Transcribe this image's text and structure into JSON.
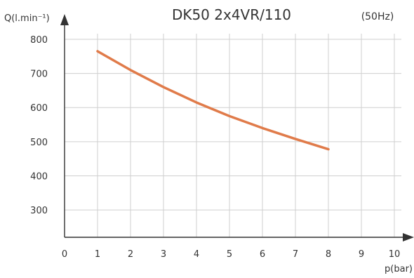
{
  "chart_data": {
    "type": "line",
    "title": "DK50 2x4VR/110",
    "subtitle": "(50Hz)",
    "xlabel": "p(bar)",
    "ylabel": "Q(l.min⁻¹)",
    "xlim": [
      0,
      10
    ],
    "ylim": [
      220,
      800
    ],
    "x_ticks": [
      "0",
      "1",
      "2",
      "3",
      "4",
      "5",
      "6",
      "7",
      "8",
      "9",
      "10"
    ],
    "y_ticks": [
      "300",
      "400",
      "500",
      "600",
      "700",
      "800"
    ],
    "grid": true,
    "series": [
      {
        "x": [
          1,
          2,
          3,
          4,
          5,
          6,
          7,
          8
        ],
        "y": [
          765,
          710,
          660,
          615,
          575,
          540,
          508,
          478
        ]
      }
    ],
    "colors": {
      "line": "#e07b4a",
      "grid": "#cfcfcf",
      "axis": "#333333"
    }
  }
}
